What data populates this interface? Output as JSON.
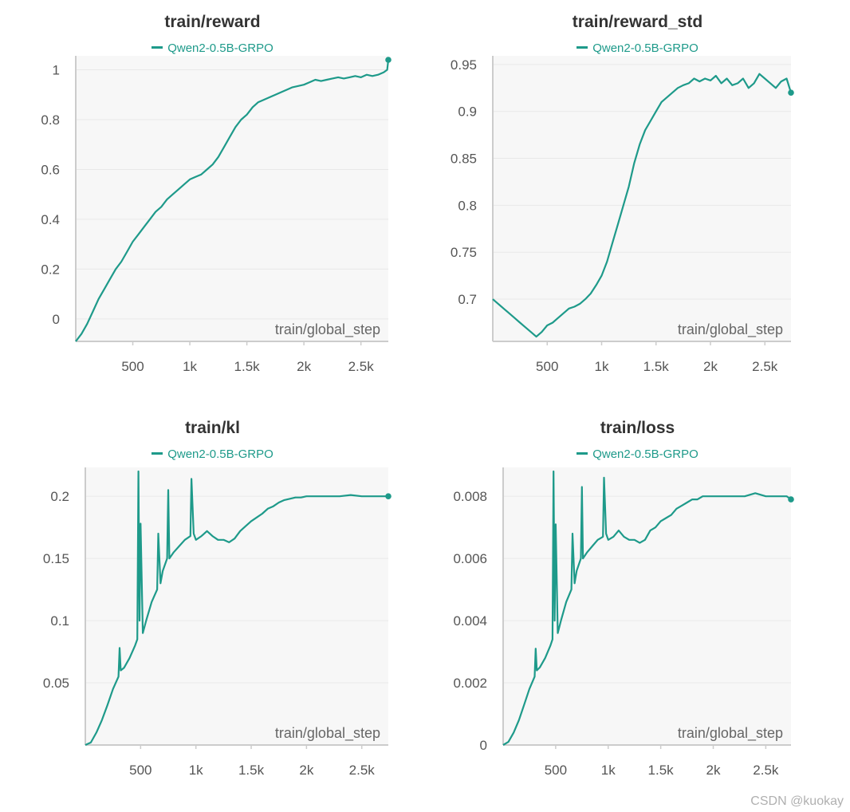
{
  "watermark": "CSDN @kuokay",
  "colors": {
    "line": "#1e9a8a",
    "grid": "#e8e8e8",
    "axis": "#cccccc",
    "plot_bg": "#f7f7f7"
  },
  "chart_data": [
    {
      "type": "line",
      "title": "train/reward",
      "legend": "Qwen2-0.5B-GRPO",
      "xlabel": "train/global_step",
      "xlim": [
        0,
        2740
      ],
      "ylim": [
        -0.09,
        1.04
      ],
      "xticks": [
        500,
        1000,
        1500,
        2000,
        2500
      ],
      "xtick_labels": [
        "500",
        "1k",
        "1.5k",
        "2k",
        "2.5k"
      ],
      "yticks": [
        0,
        0.2,
        0.4,
        0.6,
        0.8,
        1
      ],
      "ytick_labels": [
        "0",
        "0.2",
        "0.4",
        "0.6",
        "0.8",
        "1"
      ],
      "series": [
        {
          "name": "Qwen2-0.5B-GRPO",
          "x": [
            0,
            50,
            100,
            150,
            200,
            250,
            300,
            350,
            400,
            450,
            500,
            550,
            600,
            650,
            700,
            750,
            800,
            850,
            900,
            950,
            1000,
            1050,
            1100,
            1150,
            1200,
            1250,
            1300,
            1350,
            1400,
            1450,
            1500,
            1550,
            1600,
            1650,
            1700,
            1750,
            1800,
            1850,
            1900,
            1950,
            2000,
            2050,
            2100,
            2150,
            2200,
            2250,
            2300,
            2350,
            2400,
            2450,
            2500,
            2550,
            2600,
            2650,
            2700,
            2730,
            2740
          ],
          "y": [
            -0.09,
            -0.06,
            -0.02,
            0.03,
            0.08,
            0.12,
            0.16,
            0.2,
            0.23,
            0.27,
            0.31,
            0.34,
            0.37,
            0.4,
            0.43,
            0.45,
            0.48,
            0.5,
            0.52,
            0.54,
            0.56,
            0.57,
            0.58,
            0.6,
            0.62,
            0.65,
            0.69,
            0.73,
            0.77,
            0.8,
            0.82,
            0.85,
            0.87,
            0.88,
            0.89,
            0.9,
            0.91,
            0.92,
            0.93,
            0.935,
            0.94,
            0.95,
            0.96,
            0.955,
            0.96,
            0.965,
            0.97,
            0.965,
            0.97,
            0.975,
            0.97,
            0.98,
            0.975,
            0.98,
            0.99,
            1.0,
            1.04
          ]
        }
      ]
    },
    {
      "type": "line",
      "title": "train/reward_std",
      "legend": "Qwen2-0.5B-GRPO",
      "xlabel": "train/global_step",
      "xlim": [
        0,
        2740
      ],
      "ylim": [
        0.655,
        0.955
      ],
      "xticks": [
        500,
        1000,
        1500,
        2000,
        2500
      ],
      "xtick_labels": [
        "500",
        "1k",
        "1.5k",
        "2k",
        "2.5k"
      ],
      "yticks": [
        0.7,
        0.75,
        0.8,
        0.85,
        0.9,
        0.95
      ],
      "ytick_labels": [
        "0.7",
        "0.75",
        "0.8",
        "0.85",
        "0.9",
        "0.95"
      ],
      "series": [
        {
          "name": "Qwen2-0.5B-GRPO",
          "x": [
            0,
            50,
            100,
            150,
            200,
            250,
            300,
            350,
            400,
            450,
            500,
            550,
            600,
            650,
            700,
            750,
            800,
            850,
            900,
            950,
            1000,
            1050,
            1100,
            1150,
            1200,
            1250,
            1300,
            1350,
            1400,
            1450,
            1500,
            1550,
            1600,
            1650,
            1700,
            1750,
            1800,
            1850,
            1900,
            1950,
            2000,
            2050,
            2100,
            2150,
            2200,
            2250,
            2300,
            2350,
            2400,
            2450,
            2500,
            2550,
            2600,
            2650,
            2700,
            2740
          ],
          "y": [
            0.7,
            0.695,
            0.69,
            0.685,
            0.68,
            0.675,
            0.67,
            0.665,
            0.66,
            0.665,
            0.672,
            0.675,
            0.68,
            0.685,
            0.69,
            0.692,
            0.695,
            0.7,
            0.706,
            0.715,
            0.725,
            0.74,
            0.76,
            0.78,
            0.8,
            0.82,
            0.845,
            0.865,
            0.88,
            0.89,
            0.9,
            0.91,
            0.915,
            0.92,
            0.925,
            0.928,
            0.93,
            0.935,
            0.932,
            0.935,
            0.933,
            0.938,
            0.93,
            0.935,
            0.928,
            0.93,
            0.935,
            0.925,
            0.93,
            0.94,
            0.935,
            0.93,
            0.925,
            0.932,
            0.935,
            0.92
          ]
        }
      ]
    },
    {
      "type": "line",
      "title": "train/kl",
      "legend": "Qwen2-0.5B-GRPO",
      "xlabel": "train/global_step",
      "xlim": [
        0,
        2740
      ],
      "ylim": [
        0,
        0.22
      ],
      "xticks": [
        500,
        1000,
        1500,
        2000,
        2500
      ],
      "xtick_labels": [
        "500",
        "1k",
        "1.5k",
        "2k",
        "2.5k"
      ],
      "yticks": [
        0.05,
        0.1,
        0.15,
        0.2
      ],
      "ytick_labels": [
        "0.05",
        "0.1",
        "0.15",
        "0.2"
      ],
      "series": [
        {
          "name": "Qwen2-0.5B-GRPO",
          "x": [
            0,
            50,
            100,
            150,
            200,
            250,
            300,
            310,
            320,
            350,
            400,
            450,
            470,
            480,
            490,
            500,
            520,
            550,
            600,
            650,
            660,
            680,
            700,
            740,
            750,
            760,
            800,
            850,
            900,
            950,
            960,
            980,
            1000,
            1050,
            1100,
            1150,
            1200,
            1250,
            1300,
            1350,
            1400,
            1450,
            1500,
            1550,
            1600,
            1650,
            1700,
            1750,
            1800,
            1850,
            1900,
            1950,
            2000,
            2100,
            2200,
            2300,
            2400,
            2500,
            2600,
            2700,
            2740
          ],
          "y": [
            0,
            0.002,
            0.01,
            0.02,
            0.032,
            0.045,
            0.055,
            0.078,
            0.06,
            0.062,
            0.07,
            0.08,
            0.085,
            0.22,
            0.1,
            0.178,
            0.09,
            0.1,
            0.115,
            0.125,
            0.17,
            0.13,
            0.14,
            0.15,
            0.205,
            0.15,
            0.155,
            0.16,
            0.165,
            0.168,
            0.214,
            0.17,
            0.165,
            0.168,
            0.172,
            0.168,
            0.165,
            0.165,
            0.163,
            0.166,
            0.172,
            0.176,
            0.18,
            0.183,
            0.186,
            0.19,
            0.192,
            0.195,
            0.197,
            0.198,
            0.199,
            0.199,
            0.2,
            0.2,
            0.2,
            0.2,
            0.201,
            0.2,
            0.2,
            0.2,
            0.2
          ]
        }
      ]
    },
    {
      "type": "line",
      "title": "train/loss",
      "legend": "Qwen2-0.5B-GRPO",
      "xlabel": "train/global_step",
      "xlim": [
        0,
        2740
      ],
      "ylim": [
        0,
        0.0088
      ],
      "xticks": [
        500,
        1000,
        1500,
        2000,
        2500
      ],
      "xtick_labels": [
        "500",
        "1k",
        "1.5k",
        "2k",
        "2.5k"
      ],
      "yticks": [
        0,
        0.002,
        0.004,
        0.006,
        0.008
      ],
      "ytick_labels": [
        "0",
        "0.002",
        "0.004",
        "0.006",
        "0.008"
      ],
      "series": [
        {
          "name": "Qwen2-0.5B-GRPO",
          "x": [
            0,
            50,
            100,
            150,
            200,
            250,
            300,
            310,
            320,
            350,
            400,
            450,
            470,
            480,
            490,
            500,
            520,
            550,
            600,
            650,
            660,
            680,
            700,
            740,
            750,
            760,
            800,
            850,
            900,
            950,
            960,
            980,
            1000,
            1050,
            1100,
            1150,
            1200,
            1250,
            1300,
            1350,
            1400,
            1450,
            1500,
            1550,
            1600,
            1650,
            1700,
            1750,
            1800,
            1850,
            1900,
            1950,
            2000,
            2100,
            2200,
            2300,
            2400,
            2500,
            2600,
            2700,
            2740
          ],
          "y": [
            0,
            0.0001,
            0.0004,
            0.0008,
            0.0013,
            0.0018,
            0.0022,
            0.0031,
            0.0024,
            0.0025,
            0.0028,
            0.0032,
            0.0034,
            0.0088,
            0.004,
            0.0071,
            0.0036,
            0.004,
            0.0046,
            0.005,
            0.0068,
            0.0052,
            0.0056,
            0.006,
            0.0083,
            0.006,
            0.0062,
            0.0064,
            0.0066,
            0.0067,
            0.0086,
            0.0068,
            0.0066,
            0.0067,
            0.0069,
            0.0067,
            0.0066,
            0.0066,
            0.0065,
            0.0066,
            0.0069,
            0.007,
            0.0072,
            0.0073,
            0.0074,
            0.0076,
            0.0077,
            0.0078,
            0.0079,
            0.0079,
            0.008,
            0.008,
            0.008,
            0.008,
            0.008,
            0.008,
            0.0081,
            0.008,
            0.008,
            0.008,
            0.0079
          ]
        }
      ]
    }
  ]
}
